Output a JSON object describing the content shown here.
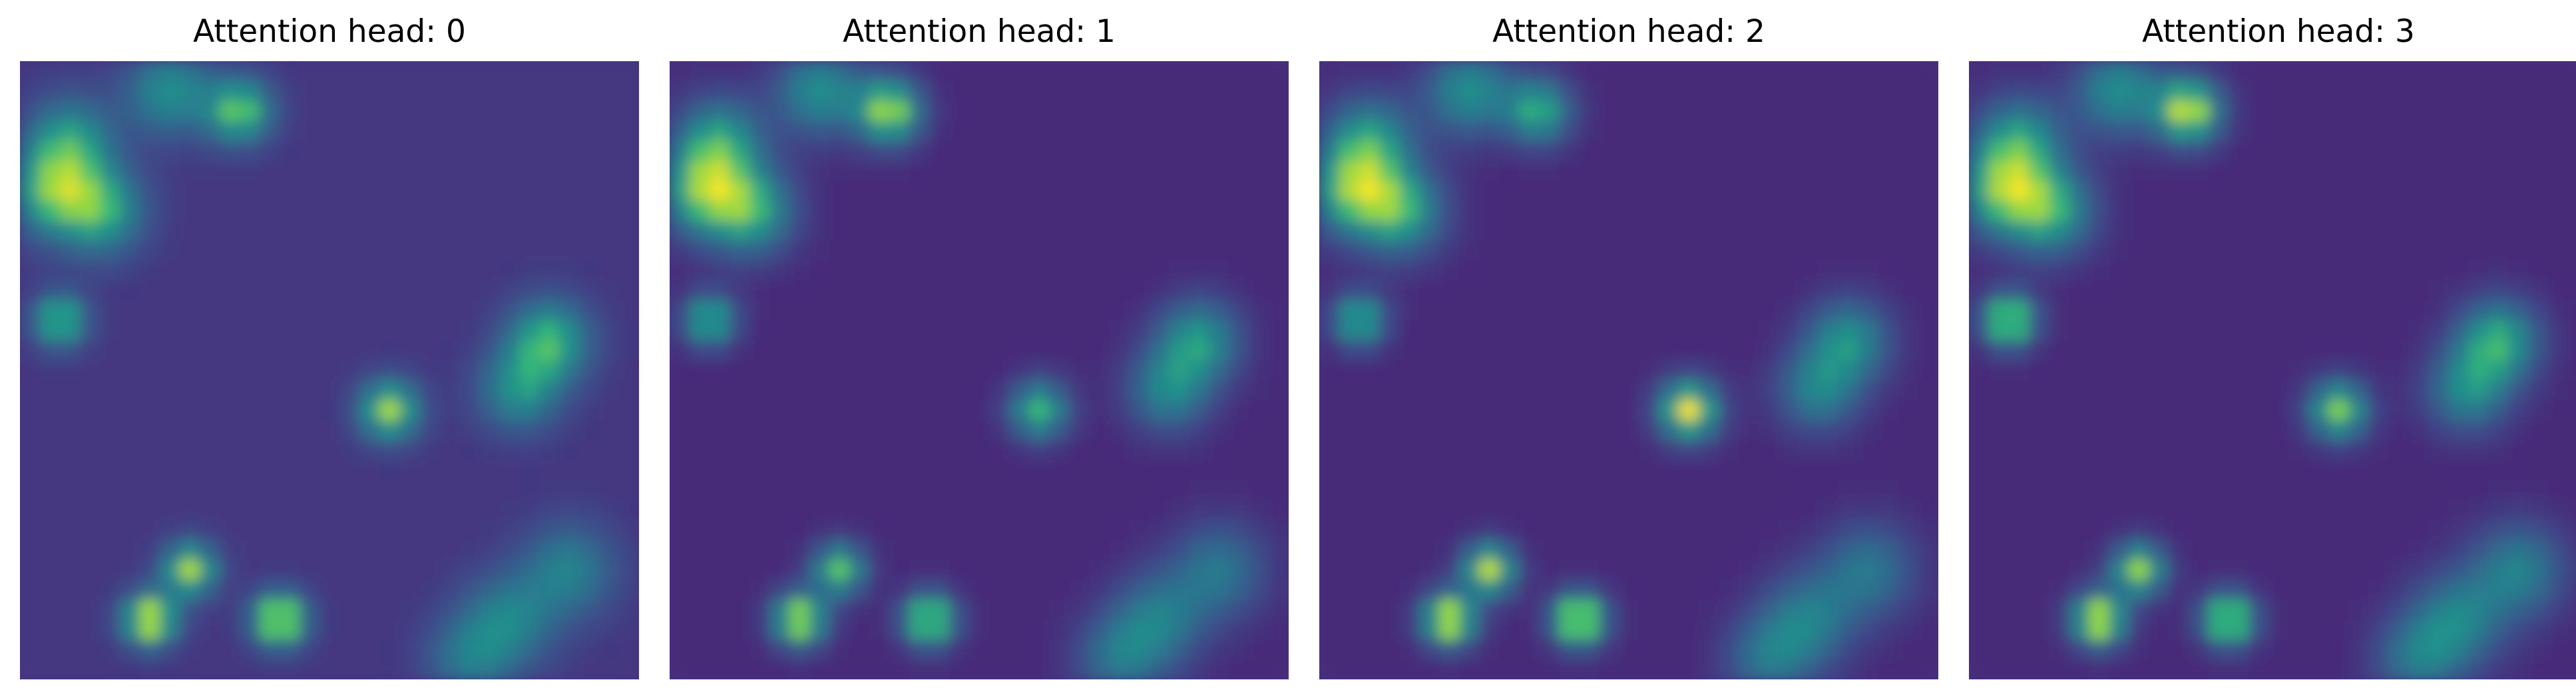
{
  "chart_data": [
    {
      "type": "heatmap",
      "title": "Attention head: 0",
      "axes": "off",
      "colormap": "viridis",
      "background_level": 0.2,
      "hotspots": [
        {
          "c": 3.5,
          "r": 7.0,
          "v": 0.72,
          "s": 1.5
        },
        {
          "c": 1.0,
          "r": 6.0,
          "v": 0.7,
          "s": 1.5
        },
        {
          "c": 2.0,
          "r": 3.5,
          "v": 0.65,
          "s": 1.5
        },
        {
          "c": 7.0,
          "r": 1.0,
          "v": 0.62,
          "s": 1.5
        },
        {
          "c": 10.5,
          "r": 2.0,
          "v": 0.82,
          "s": 1.1
        },
        {
          "c": 1.5,
          "r": 12.5,
          "v": 0.8,
          "s": 0.9
        },
        {
          "c": 18.0,
          "r": 17.0,
          "v": 0.9,
          "s": 1.0
        },
        {
          "c": 8.0,
          "r": 25.0,
          "v": 0.9,
          "s": 0.9
        },
        {
          "c": 6.0,
          "r": 27.5,
          "v": 1.0,
          "s": 0.9
        },
        {
          "c": 12.5,
          "r": 27.5,
          "v": 1.0,
          "s": 0.9
        },
        {
          "c": 26.0,
          "r": 13.5,
          "v": 0.75,
          "s": 1.4
        },
        {
          "c": 24.5,
          "r": 16.0,
          "v": 0.62,
          "s": 1.4
        },
        {
          "c": 27.0,
          "r": 25.0,
          "v": 0.55,
          "s": 1.6
        },
        {
          "c": 24.0,
          "r": 27.5,
          "v": 0.55,
          "s": 1.6
        },
        {
          "c": 22.0,
          "r": 29.5,
          "v": 0.5,
          "s": 1.5
        }
      ]
    },
    {
      "type": "heatmap",
      "title": "Attention head: 1",
      "axes": "off",
      "colormap": "viridis",
      "background_level": 0.15,
      "hotspots": [
        {
          "c": 3.5,
          "r": 7.0,
          "v": 0.72,
          "s": 1.5
        },
        {
          "c": 1.0,
          "r": 6.0,
          "v": 0.7,
          "s": 1.5
        },
        {
          "c": 2.0,
          "r": 3.5,
          "v": 0.65,
          "s": 1.5
        },
        {
          "c": 7.0,
          "r": 1.0,
          "v": 0.62,
          "s": 1.5
        },
        {
          "c": 10.5,
          "r": 2.0,
          "v": 0.9,
          "s": 1.1
        },
        {
          "c": 1.5,
          "r": 12.5,
          "v": 0.75,
          "s": 0.9
        },
        {
          "c": 18.0,
          "r": 17.0,
          "v": 0.75,
          "s": 1.0
        },
        {
          "c": 8.0,
          "r": 25.0,
          "v": 0.8,
          "s": 0.9
        },
        {
          "c": 6.0,
          "r": 27.5,
          "v": 0.95,
          "s": 0.9
        },
        {
          "c": 12.5,
          "r": 27.5,
          "v": 0.9,
          "s": 0.9
        },
        {
          "c": 26.0,
          "r": 13.5,
          "v": 0.65,
          "s": 1.4
        },
        {
          "c": 24.5,
          "r": 16.0,
          "v": 0.58,
          "s": 1.4
        },
        {
          "c": 27.0,
          "r": 25.0,
          "v": 0.5,
          "s": 1.6
        },
        {
          "c": 24.0,
          "r": 27.5,
          "v": 0.52,
          "s": 1.6
        },
        {
          "c": 22.0,
          "r": 29.5,
          "v": 0.48,
          "s": 1.5
        }
      ]
    },
    {
      "type": "heatmap",
      "title": "Attention head: 2",
      "axes": "off",
      "colormap": "viridis",
      "background_level": 0.15,
      "hotspots": [
        {
          "c": 3.5,
          "r": 7.0,
          "v": 0.72,
          "s": 1.5
        },
        {
          "c": 1.0,
          "r": 6.0,
          "v": 0.7,
          "s": 1.5
        },
        {
          "c": 2.0,
          "r": 3.5,
          "v": 0.65,
          "s": 1.5
        },
        {
          "c": 7.0,
          "r": 1.0,
          "v": 0.62,
          "s": 1.5
        },
        {
          "c": 10.5,
          "r": 2.0,
          "v": 0.72,
          "s": 1.1
        },
        {
          "c": 1.5,
          "r": 12.5,
          "v": 0.75,
          "s": 0.9
        },
        {
          "c": 18.0,
          "r": 17.0,
          "v": 0.98,
          "s": 1.0
        },
        {
          "c": 8.0,
          "r": 25.0,
          "v": 0.92,
          "s": 0.9
        },
        {
          "c": 6.0,
          "r": 27.5,
          "v": 1.0,
          "s": 0.9
        },
        {
          "c": 12.5,
          "r": 27.5,
          "v": 1.0,
          "s": 0.9
        },
        {
          "c": 26.0,
          "r": 13.5,
          "v": 0.62,
          "s": 1.4
        },
        {
          "c": 24.5,
          "r": 16.0,
          "v": 0.56,
          "s": 1.4
        },
        {
          "c": 27.0,
          "r": 25.0,
          "v": 0.5,
          "s": 1.6
        },
        {
          "c": 24.0,
          "r": 27.5,
          "v": 0.52,
          "s": 1.6
        },
        {
          "c": 22.0,
          "r": 29.5,
          "v": 0.48,
          "s": 1.5
        }
      ]
    },
    {
      "type": "heatmap",
      "title": "Attention head: 3",
      "axes": "off",
      "colormap": "viridis",
      "background_level": 0.15,
      "hotspots": [
        {
          "c": 3.5,
          "r": 7.0,
          "v": 0.72,
          "s": 1.5
        },
        {
          "c": 1.0,
          "r": 6.0,
          "v": 0.7,
          "s": 1.5
        },
        {
          "c": 2.0,
          "r": 3.5,
          "v": 0.65,
          "s": 1.5
        },
        {
          "c": 7.0,
          "r": 1.0,
          "v": 0.62,
          "s": 1.5
        },
        {
          "c": 10.5,
          "r": 2.0,
          "v": 0.95,
          "s": 1.1
        },
        {
          "c": 1.5,
          "r": 12.5,
          "v": 0.92,
          "s": 0.9
        },
        {
          "c": 18.0,
          "r": 17.0,
          "v": 0.85,
          "s": 1.0
        },
        {
          "c": 8.0,
          "r": 25.0,
          "v": 0.88,
          "s": 0.9
        },
        {
          "c": 6.0,
          "r": 27.5,
          "v": 1.0,
          "s": 0.9
        },
        {
          "c": 12.5,
          "r": 27.5,
          "v": 0.92,
          "s": 0.9
        },
        {
          "c": 26.0,
          "r": 13.5,
          "v": 0.72,
          "s": 1.4
        },
        {
          "c": 24.5,
          "r": 16.0,
          "v": 0.6,
          "s": 1.4
        },
        {
          "c": 27.0,
          "r": 25.0,
          "v": 0.55,
          "s": 1.6
        },
        {
          "c": 24.0,
          "r": 27.5,
          "v": 0.55,
          "s": 1.6
        },
        {
          "c": 22.0,
          "r": 29.5,
          "v": 0.5,
          "s": 1.5
        }
      ]
    }
  ]
}
